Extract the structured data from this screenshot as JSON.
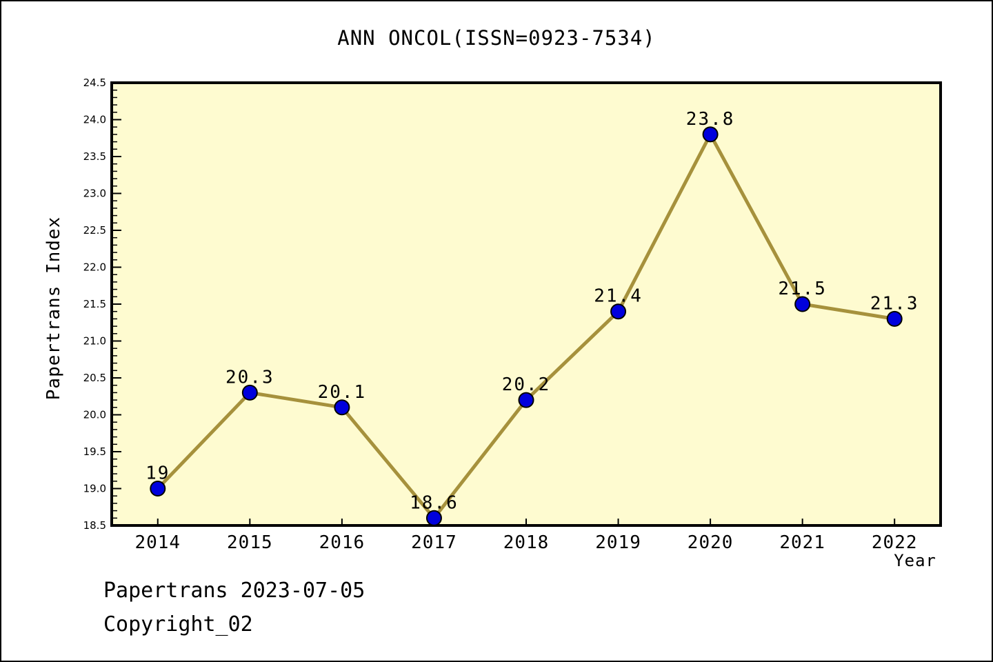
{
  "title": "ANN ONCOL(ISSN=0923-7534)",
  "footer": {
    "line1": "Papertrans 2023-07-05",
    "line2": "Copyright_02"
  },
  "chart_data": {
    "type": "line",
    "title": "ANN ONCOL(ISSN=0923-7534)",
    "xlabel": "Year",
    "ylabel": "Papertrans Index",
    "x": [
      2014,
      2015,
      2016,
      2017,
      2018,
      2019,
      2020,
      2021,
      2022
    ],
    "values": [
      19,
      20.3,
      20.1,
      18.6,
      20.2,
      21.4,
      23.8,
      21.5,
      21.3
    ],
    "point_labels": [
      "19",
      "20.3",
      "20.1",
      "18.6",
      "20.2",
      "21.4",
      "23.8",
      "21.5",
      "21.3"
    ],
    "x_tick_labels": [
      "2014",
      "2015",
      "2016",
      "2017",
      "2018",
      "2019",
      "2020",
      "2021",
      "2022"
    ],
    "y_tick_labels": [
      "18.5",
      "19.0",
      "19.5",
      "20.0",
      "20.5",
      "21.0",
      "21.5",
      "22.0",
      "22.5",
      "23.0",
      "23.5",
      "24.0",
      "24.5"
    ],
    "xlim": [
      2013.5,
      2022.5
    ],
    "ylim": [
      18.5,
      24.5
    ],
    "y_major_step": 0.5,
    "y_minor_step": 0.1,
    "grid": false,
    "legend": null,
    "colors": {
      "line": "#A6913C",
      "marker_fill": "#0000DD",
      "marker_edge": "#000000",
      "plot_bg": "#FEFBD0",
      "page_bg": "#FFFFFF",
      "axis": "#000000",
      "text": "#000000"
    }
  }
}
